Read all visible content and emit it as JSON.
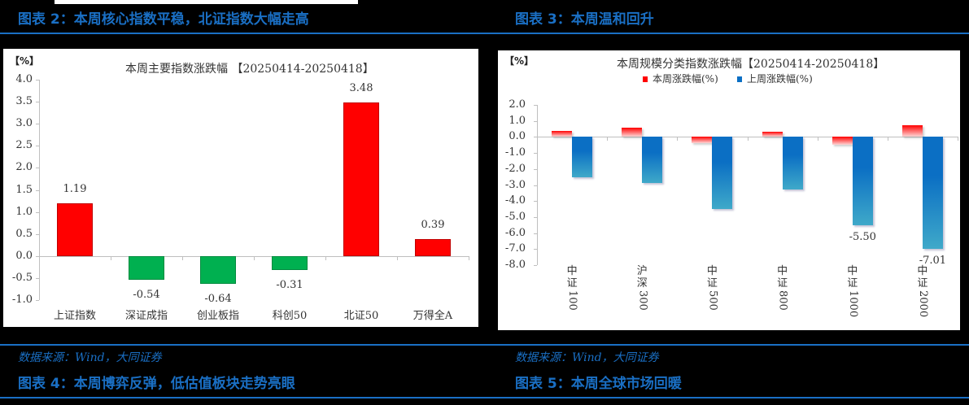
{
  "figures": {
    "fig2_title": "图表 2：本周核心指数平稳，北证指数大幅走高",
    "fig3_title": "图表 3：本周温和回升",
    "fig4_title": "图表 4：本周博弈反弹，低估值板块走势亮眼",
    "fig5_title": "图表 5：本周全球市场回暖",
    "source_left": "数据来源：Wind，大同证券",
    "source_right": "数据来源：Wind，大同证券"
  },
  "colors": {
    "accent_blue": "#1a6fc4",
    "up_red": "#ff0000",
    "down_green": "#00b050",
    "last_week_blue": "#0b6fc4"
  },
  "chart_data": [
    {
      "type": "bar",
      "title": "本周主要指数涨跌幅 【20250414-20250418】",
      "unit_label": "【%】",
      "xlabel": "",
      "ylabel": "%",
      "ylim": [
        -1.0,
        4.0
      ],
      "yticks": [
        "4.0",
        "3.5",
        "3.0",
        "2.5",
        "2.0",
        "1.5",
        "1.0",
        "0.5",
        "0.0",
        "-0.5",
        "-1.0"
      ],
      "categories": [
        "上证指数",
        "深证成指",
        "创业板指",
        "科创50",
        "北证50",
        "万得全A"
      ],
      "values": [
        1.19,
        -0.54,
        -0.64,
        -0.31,
        3.48,
        0.39
      ],
      "value_labels": [
        "1.19",
        "-0.54",
        "-0.64",
        "-0.31",
        "3.48",
        "0.39"
      ],
      "grid": false,
      "legend": null
    },
    {
      "type": "bar",
      "title": "本周规模分类指数涨跌幅【20250414-20250418】",
      "unit_label": "【%】",
      "xlabel": "",
      "ylabel": "%",
      "ylim": [
        -8.0,
        2.0
      ],
      "yticks": [
        "2.0",
        "1.0",
        "0.0",
        "-1.0",
        "-2.0",
        "-3.0",
        "-4.0",
        "-5.0",
        "-6.0",
        "-7.0",
        "-8.0"
      ],
      "categories": [
        "中证100",
        "沪深300",
        "中证500",
        "中证800",
        "中证1000",
        "中证2000"
      ],
      "category_label_parts": [
        {
          "cjk": "中证",
          "num": "100"
        },
        {
          "cjk": "沪深",
          "num": "300"
        },
        {
          "cjk": "中证",
          "num": "500"
        },
        {
          "cjk": "中证",
          "num": "800"
        },
        {
          "cjk": "中证",
          "num": "1000"
        },
        {
          "cjk": "中证",
          "num": "2000"
        }
      ],
      "series": [
        {
          "name": "本周涨跌幅(%)",
          "color": "#ff0000",
          "values": [
            0.4,
            0.6,
            -0.4,
            0.35,
            -0.5,
            0.75
          ]
        },
        {
          "name": "上周涨跌幅(%)",
          "color": "#0b6fc4",
          "values": [
            -2.5,
            -2.85,
            -4.5,
            -3.3,
            -5.5,
            -7.01
          ]
        }
      ],
      "annotations": [
        {
          "series": "上周涨跌幅(%)",
          "category": "中证1000",
          "label": "-5.50"
        },
        {
          "series": "上周涨跌幅(%)",
          "category": "中证2000",
          "label": "-7.01"
        }
      ],
      "grid": false,
      "legend_position": "top"
    }
  ]
}
